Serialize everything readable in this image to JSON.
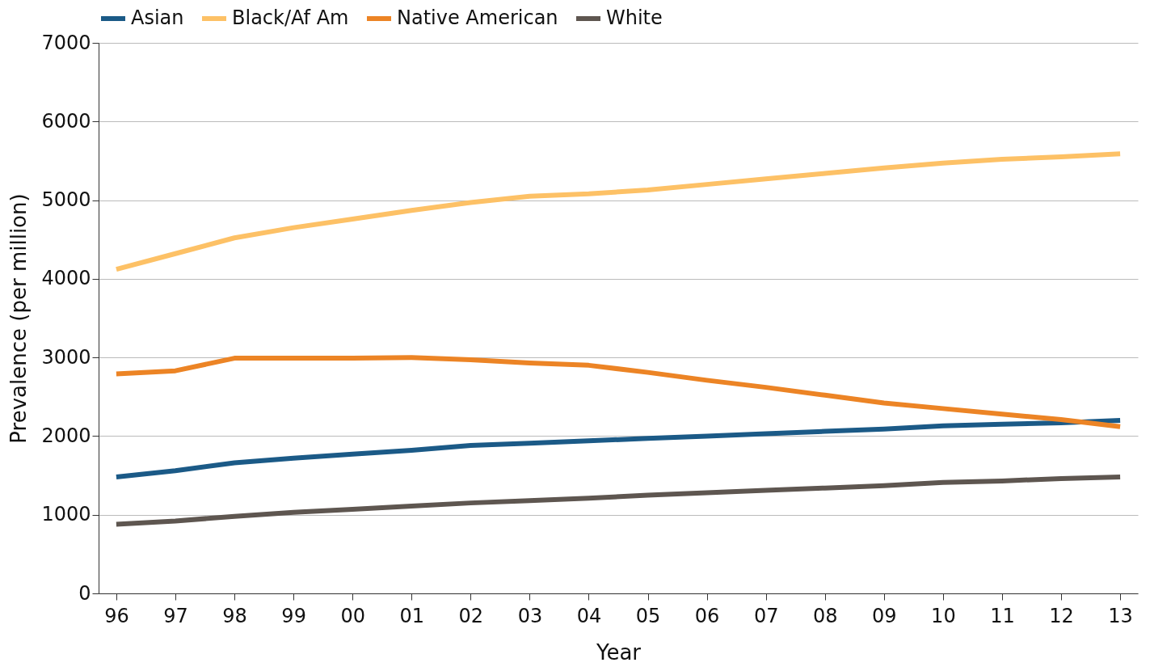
{
  "chart_data": {
    "type": "line",
    "xlabel": "Year",
    "ylabel": "Prevalence (per million)",
    "categories": [
      "96",
      "97",
      "98",
      "99",
      "00",
      "01",
      "02",
      "03",
      "04",
      "05",
      "06",
      "07",
      "08",
      "09",
      "10",
      "11",
      "12",
      "13"
    ],
    "series": [
      {
        "name": "Asian",
        "color": "#1b5a87",
        "values": [
          1480,
          1560,
          1660,
          1720,
          1770,
          1820,
          1880,
          1910,
          1940,
          1970,
          2000,
          2030,
          2060,
          2090,
          2130,
          2150,
          2170,
          2200
        ]
      },
      {
        "name": "Black/Af Am",
        "color": "#fdc166",
        "values": [
          4120,
          4320,
          4520,
          4650,
          4760,
          4870,
          4970,
          5050,
          5080,
          5130,
          5200,
          5270,
          5340,
          5410,
          5470,
          5520,
          5550,
          5590
        ]
      },
      {
        "name": "Native American",
        "color": "#ec8425",
        "values": [
          2790,
          2830,
          2990,
          2990,
          2990,
          3000,
          2970,
          2930,
          2900,
          2810,
          2710,
          2620,
          2520,
          2420,
          2350,
          2280,
          2210,
          2120
        ]
      },
      {
        "name": "White",
        "color": "#5e5650",
        "values": [
          880,
          920,
          980,
          1030,
          1070,
          1110,
          1150,
          1180,
          1210,
          1250,
          1280,
          1310,
          1340,
          1370,
          1410,
          1430,
          1460,
          1480
        ]
      }
    ],
    "ylim": [
      0,
      7000
    ],
    "yticks": [
      0,
      1000,
      2000,
      3000,
      4000,
      5000,
      6000,
      7000
    ],
    "grid": "y",
    "legend": "top",
    "marker": "none",
    "line_style": "solid"
  }
}
